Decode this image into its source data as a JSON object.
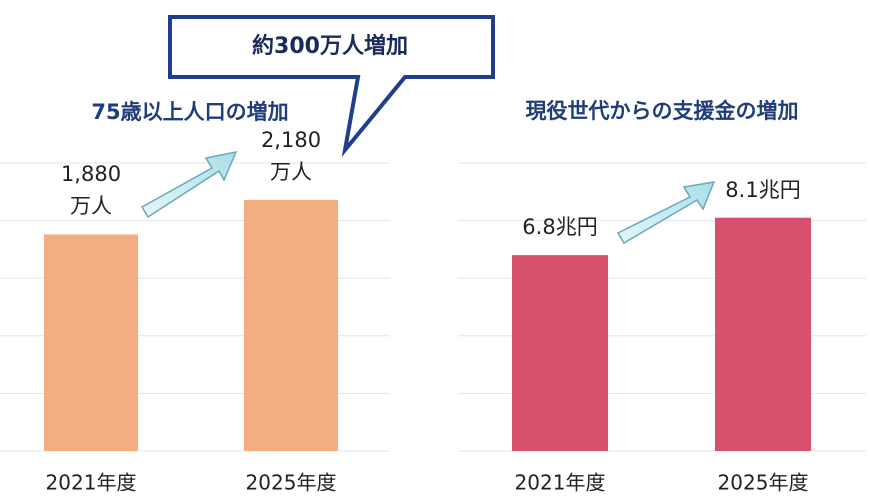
{
  "chart_data": [
    {
      "type": "bar",
      "title": "75歳以上人口の増加",
      "annotation": "約300万人増加",
      "categories": [
        "2021年度",
        "2025年度"
      ],
      "values": [
        1880,
        2180
      ],
      "value_labels": [
        "1,880\n万人",
        "2,180\n万人"
      ],
      "color": "#f2ae80",
      "ylim": [
        0,
        2500
      ],
      "yticks": [
        0,
        500,
        1000,
        1500,
        2000,
        2500
      ],
      "grid": true
    },
    {
      "type": "bar",
      "title": "現役世代からの支援金の増加",
      "categories": [
        "2021年度",
        "2025年度"
      ],
      "values": [
        6.8,
        8.1
      ],
      "value_labels": [
        "6.8兆円",
        "8.1兆円"
      ],
      "color": "#d94f6e",
      "ylim": [
        0,
        10
      ],
      "yticks": [
        0,
        2,
        4,
        6,
        8,
        10
      ],
      "grid": true
    }
  ]
}
